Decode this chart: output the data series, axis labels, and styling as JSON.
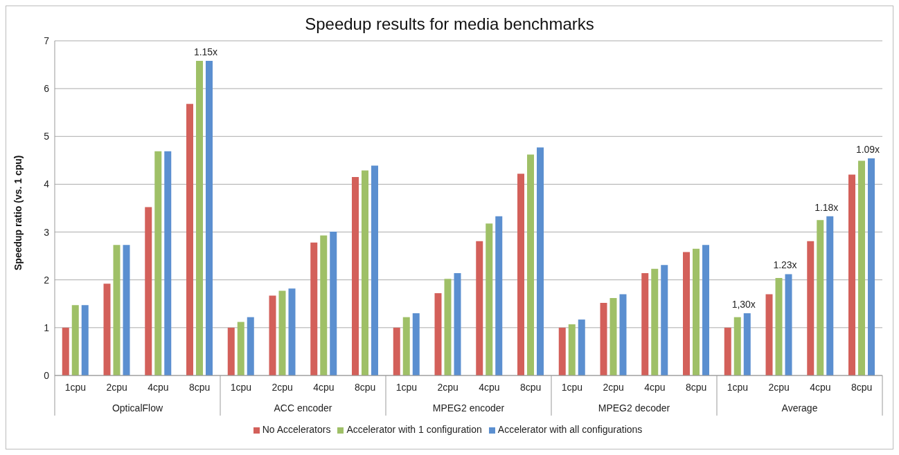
{
  "chart_data": {
    "type": "bar",
    "title": "Speedup results for media benchmarks",
    "ylabel": "Speedup ratio (vs. 1 cpu)",
    "categories": [
      "1cpu",
      "2cpu",
      "4cpu",
      "8cpu",
      "1cpu",
      "2cpu",
      "4cpu",
      "8cpu",
      "1cpu",
      "2cpu",
      "4cpu",
      "8cpu",
      "1cpu",
      "2cpu",
      "4cpu",
      "8cpu",
      "1cpu",
      "2cpu",
      "4cpu",
      "8cpu"
    ],
    "annotations": [
      "OpticalFlow",
      "ACC encoder",
      "MPEG2 encoder",
      "MPEG2 decoder",
      "Average",
      {
        "text": "1.15x",
        "x": "8cpu",
        "y": 6.58
      },
      "1,30x",
      "1.23x",
      "1.18x",
      "1.09x"
    ],
    "series": [
      {
        "name": "No Accelerators",
        "color": "#d3605a",
        "values": [
          1,
          1.92,
          3.52,
          5.68,
          1,
          1.67,
          2.78,
          4.15,
          1,
          1.72,
          2.81,
          4.22,
          1,
          1.52,
          2.14,
          2.58,
          1,
          1.7,
          2.81,
          4.2
        ]
      },
      {
        "name": "Accelerator with 1 configuration",
        "color": "#9fc067",
        "values": [
          1.47,
          2.73,
          4.69,
          6.58,
          1.12,
          1.77,
          2.93,
          4.29,
          1.22,
          2.02,
          3.18,
          4.62,
          1.07,
          1.62,
          2.23,
          2.65,
          1.22,
          2.04,
          3.25,
          4.49
        ]
      },
      {
        "name": "Accelerator with all configurations",
        "color": "#5b8fd0",
        "values": [
          1.47,
          2.73,
          4.69,
          6.58,
          1.22,
          1.82,
          3.01,
          4.39,
          1.3,
          2.14,
          3.33,
          4.77,
          1.17,
          1.7,
          2.31,
          2.73,
          1.3,
          2.12,
          3.33,
          4.54
        ]
      }
    ],
    "ylim": [
      0,
      7
    ],
    "yticks": [
      0,
      1,
      2,
      3,
      4,
      5,
      6,
      7
    ],
    "grid": "y",
    "legend": "bottom"
  }
}
